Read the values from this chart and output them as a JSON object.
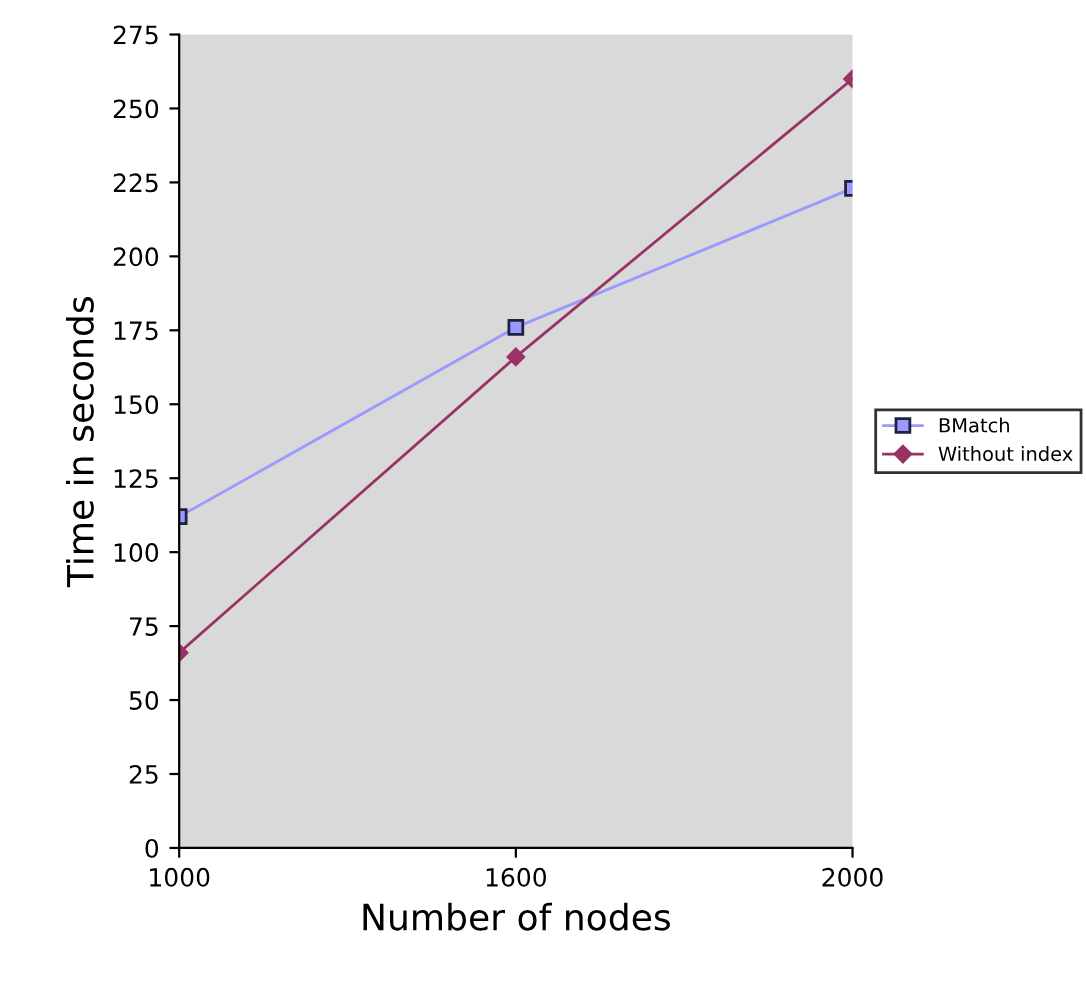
{
  "chart_data": {
    "type": "line",
    "xlabel": "Number of nodes",
    "ylabel": "Time in seconds",
    "categories": [
      "1000",
      "1600",
      "2000"
    ],
    "series": [
      {
        "name": "BMatch",
        "color": "#9999ff",
        "marker": "square",
        "values": [
          112,
          176,
          223
        ]
      },
      {
        "name": "Without index",
        "color": "#993366",
        "marker": "diamond",
        "values": [
          66,
          166,
          260
        ]
      }
    ],
    "ylim": [
      0,
      275
    ],
    "yticks": [
      0,
      25,
      50,
      75,
      100,
      125,
      150,
      175,
      200,
      225,
      250,
      275
    ],
    "grid": false,
    "legend": "right"
  }
}
